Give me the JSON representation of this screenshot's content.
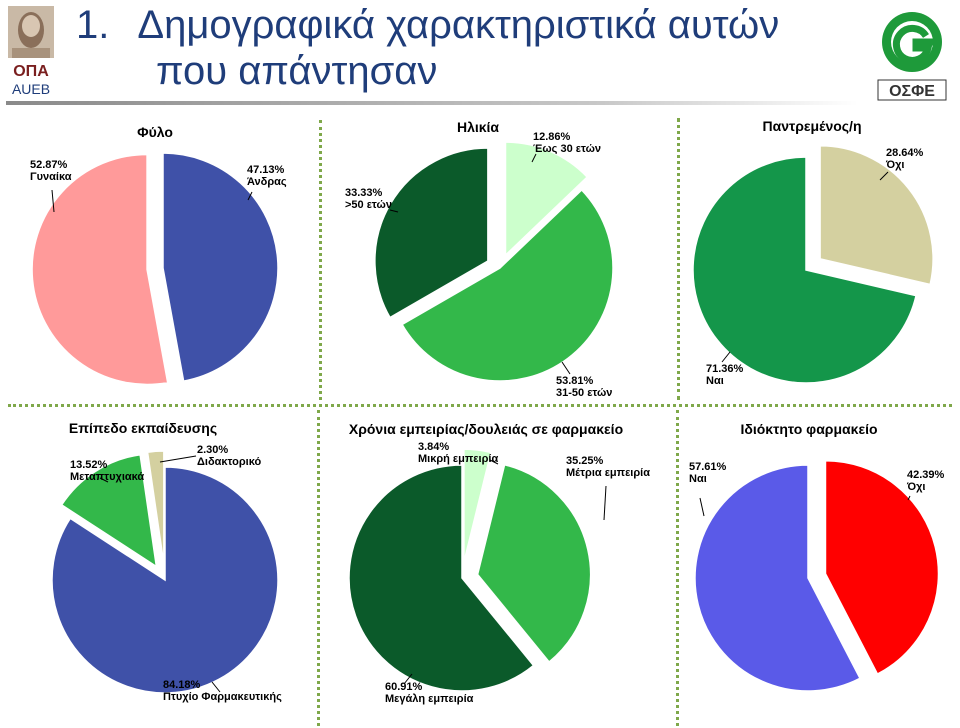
{
  "header": {
    "number": "1.",
    "title_line1": "Δημογραφικά χαρακτηριστικά αυτών",
    "title_line2": "που απάντησαν",
    "left_logo_text1": "ΟΠΑ",
    "left_logo_text2": "AUEB",
    "right_logo_text": "ΟΣΦΕ"
  },
  "chart_data": [
    {
      "type": "pie",
      "title": "Φύλο",
      "slices": [
        {
          "label": "Άνδρας",
          "value": 47.13,
          "value_label": "47.13%",
          "color": "#3f51a8",
          "exploded": false
        },
        {
          "label": "Γυναίκα",
          "value": 52.87,
          "value_label": "52.87%",
          "color": "#ff9a9a",
          "exploded": true
        }
      ]
    },
    {
      "type": "pie",
      "title": "Ηλικία",
      "slices": [
        {
          "label": "Έως 30 ετών",
          "value": 12.86,
          "value_label": "12.86%",
          "color": "#ccffcc",
          "exploded": true
        },
        {
          "label": "31-50 ετών",
          "value": 53.81,
          "value_label": "53.81%",
          "color": "#33b84a",
          "exploded": false
        },
        {
          "label": ">50 ετών",
          "value": 33.33,
          "value_label": "33.33%",
          "color": "#0b5a2a",
          "exploded": true
        }
      ]
    },
    {
      "type": "pie",
      "title": "Παντρεμένος/η",
      "slices": [
        {
          "label": "Όχι",
          "value": 28.64,
          "value_label": "28.64%",
          "color": "#d4d0a0",
          "exploded": true
        },
        {
          "label": "Ναι",
          "value": 71.36,
          "value_label": "71.36%",
          "color": "#14964a",
          "exploded": false
        }
      ]
    },
    {
      "type": "pie",
      "title": "Επίπεδο εκπαίδευσης",
      "slices": [
        {
          "label": "Πτυχίο Φαρμακευτικής",
          "value": 84.18,
          "value_label": "84.18%",
          "color": "#3f51a8",
          "exploded": false
        },
        {
          "label": "Μεταπτυχιακά",
          "value": 13.52,
          "value_label": "13.52%",
          "color": "#33b84a",
          "exploded": true
        },
        {
          "label": "Διδακτορικό",
          "value": 2.3,
          "value_label": "2.30%",
          "color": "#d4d0a0",
          "exploded": true
        }
      ]
    },
    {
      "type": "pie",
      "title": "Χρόνια εμπειρίας/δουλειάς σε φαρμακείο",
      "slices": [
        {
          "label": "Μικρή εμπειρία",
          "value": 3.84,
          "value_label": "3.84%",
          "color": "#ccffcc",
          "exploded": true
        },
        {
          "label": "Μέτρια εμπειρία",
          "value": 35.25,
          "value_label": "35.25%",
          "color": "#33b84a",
          "exploded": true
        },
        {
          "label": "Μεγάλη εμπειρία",
          "value": 60.91,
          "value_label": "60.91%",
          "color": "#0b5a2a",
          "exploded": false
        }
      ]
    },
    {
      "type": "pie",
      "title": "Ιδιόκτητο φαρμακείο",
      "slices": [
        {
          "label": "Όχι",
          "value": 42.39,
          "value_label": "42.39%",
          "color": "#ff0000",
          "exploded": true
        },
        {
          "label": "Ναι",
          "value": 57.61,
          "value_label": "57.61%",
          "color": "#5a5ae8",
          "exploded": false
        }
      ]
    }
  ]
}
